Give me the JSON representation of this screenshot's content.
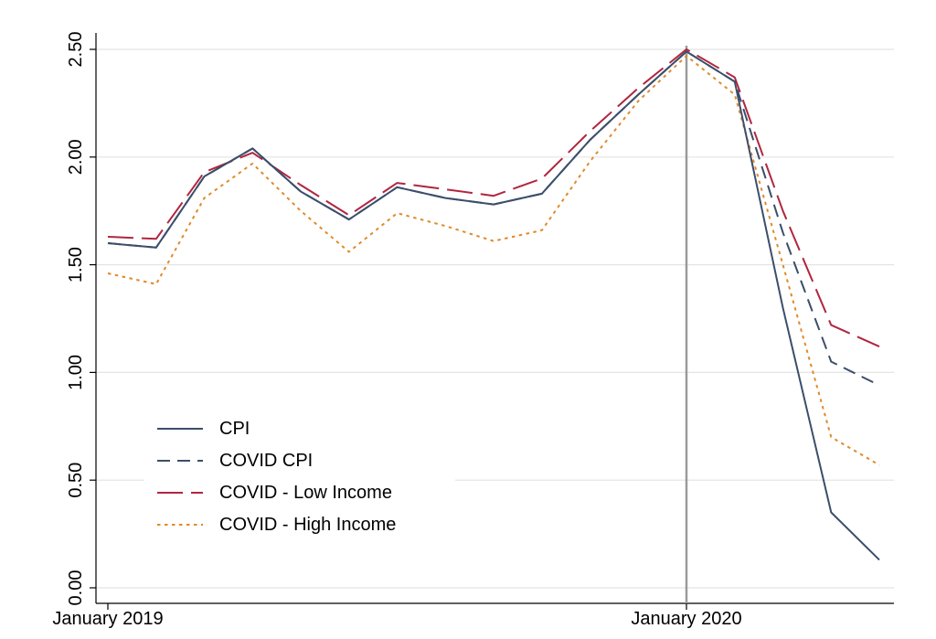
{
  "chart_data": {
    "type": "line",
    "x_tick_labels": [
      "January 2019",
      "January 2020"
    ],
    "y_ticks": [
      "0.00",
      "0.50",
      "1.00",
      "1.50",
      "2.00",
      "2.50"
    ],
    "ylim": [
      0,
      2.5
    ],
    "grid": true,
    "legend_position": "bottom-left",
    "vertical_marker": {
      "at_index": 12,
      "color": "#9a9a9a"
    },
    "x": [
      "Jan 2019",
      "Feb 2019",
      "Mar 2019",
      "Apr 2019",
      "May 2019",
      "Jun 2019",
      "Jul 2019",
      "Aug 2019",
      "Sep 2019",
      "Oct 2019",
      "Nov 2019",
      "Dec 2019",
      "Jan 2020",
      "Feb 2020",
      "Mar 2020",
      "Apr 2020",
      "May 2020"
    ],
    "series": [
      {
        "name": "CPI",
        "style": "solid",
        "color": "#3b4e6b",
        "values": [
          1.6,
          1.58,
          1.91,
          2.04,
          1.84,
          1.71,
          1.86,
          1.81,
          1.78,
          1.83,
          2.08,
          2.29,
          2.49,
          2.35,
          1.3,
          0.35,
          0.13
        ]
      },
      {
        "name": "COVID CPI",
        "style": "dash",
        "color": "#3b4e6b",
        "values": [
          1.6,
          1.58,
          1.91,
          2.04,
          1.84,
          1.71,
          1.86,
          1.81,
          1.78,
          1.83,
          2.08,
          2.29,
          2.49,
          2.35,
          1.65,
          1.05,
          0.94
        ]
      },
      {
        "name": "COVID - Low Income",
        "style": "longdash",
        "color": "#b0263f",
        "values": [
          1.63,
          1.62,
          1.93,
          2.02,
          1.87,
          1.73,
          1.88,
          1.85,
          1.82,
          1.9,
          2.12,
          2.32,
          2.5,
          2.37,
          1.75,
          1.22,
          1.12
        ]
      },
      {
        "name": "COVID - High Income",
        "style": "dot",
        "color": "#e08a2c",
        "values": [
          1.46,
          1.41,
          1.81,
          1.97,
          1.75,
          1.56,
          1.74,
          1.68,
          1.61,
          1.66,
          1.98,
          2.26,
          2.47,
          2.29,
          1.5,
          0.7,
          0.57
        ]
      }
    ]
  }
}
